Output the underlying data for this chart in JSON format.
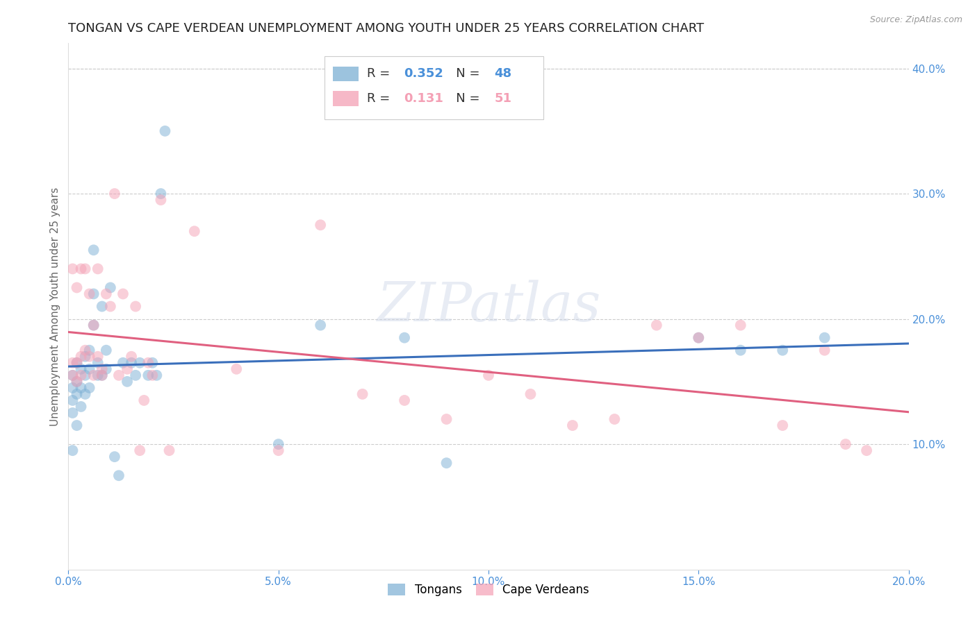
{
  "title": "TONGAN VS CAPE VERDEAN UNEMPLOYMENT AMONG YOUTH UNDER 25 YEARS CORRELATION CHART",
  "source": "Source: ZipAtlas.com",
  "ylabel": "Unemployment Among Youth under 25 years",
  "tongan_R": 0.352,
  "tongan_N": 48,
  "capeverdean_R": 0.131,
  "capeverdean_N": 51,
  "tongan_color": "#7bafd4",
  "capeverdean_color": "#f4a0b5",
  "trend_tongan_color": "#3a6fbb",
  "trend_capeverdean_color": "#e06080",
  "background_color": "#ffffff",
  "grid_color": "#cccccc",
  "axis_label_color": "#4a90d9",
  "xlim": [
    0.0,
    0.2
  ],
  "ylim": [
    0.0,
    0.42
  ],
  "xticks": [
    0.0,
    0.05,
    0.1,
    0.15,
    0.2
  ],
  "yticks_right": [
    0.1,
    0.2,
    0.3,
    0.4
  ],
  "tongan_x": [
    0.001,
    0.001,
    0.001,
    0.001,
    0.001,
    0.002,
    0.002,
    0.002,
    0.002,
    0.003,
    0.003,
    0.003,
    0.004,
    0.004,
    0.004,
    0.005,
    0.005,
    0.005,
    0.006,
    0.006,
    0.006,
    0.007,
    0.007,
    0.008,
    0.008,
    0.009,
    0.009,
    0.01,
    0.011,
    0.012,
    0.013,
    0.014,
    0.015,
    0.016,
    0.017,
    0.019,
    0.02,
    0.021,
    0.022,
    0.023,
    0.05,
    0.06,
    0.08,
    0.09,
    0.15,
    0.16,
    0.17,
    0.18
  ],
  "tongan_y": [
    0.155,
    0.145,
    0.135,
    0.125,
    0.095,
    0.165,
    0.15,
    0.14,
    0.115,
    0.16,
    0.145,
    0.13,
    0.17,
    0.155,
    0.14,
    0.175,
    0.16,
    0.145,
    0.255,
    0.22,
    0.195,
    0.165,
    0.155,
    0.21,
    0.155,
    0.175,
    0.16,
    0.225,
    0.09,
    0.075,
    0.165,
    0.15,
    0.165,
    0.155,
    0.165,
    0.155,
    0.165,
    0.155,
    0.3,
    0.35,
    0.1,
    0.195,
    0.185,
    0.085,
    0.185,
    0.175,
    0.175,
    0.185
  ],
  "capeverdean_x": [
    0.001,
    0.001,
    0.001,
    0.002,
    0.002,
    0.002,
    0.003,
    0.003,
    0.003,
    0.004,
    0.004,
    0.005,
    0.005,
    0.006,
    0.006,
    0.007,
    0.007,
    0.008,
    0.008,
    0.009,
    0.01,
    0.011,
    0.012,
    0.013,
    0.014,
    0.015,
    0.016,
    0.017,
    0.018,
    0.019,
    0.02,
    0.022,
    0.024,
    0.03,
    0.04,
    0.05,
    0.06,
    0.07,
    0.08,
    0.09,
    0.1,
    0.11,
    0.12,
    0.13,
    0.14,
    0.15,
    0.16,
    0.17,
    0.18,
    0.185,
    0.19
  ],
  "capeverdean_y": [
    0.155,
    0.24,
    0.165,
    0.15,
    0.225,
    0.165,
    0.24,
    0.155,
    0.17,
    0.175,
    0.24,
    0.22,
    0.17,
    0.155,
    0.195,
    0.17,
    0.24,
    0.16,
    0.155,
    0.22,
    0.21,
    0.3,
    0.155,
    0.22,
    0.16,
    0.17,
    0.21,
    0.095,
    0.135,
    0.165,
    0.155,
    0.295,
    0.095,
    0.27,
    0.16,
    0.095,
    0.275,
    0.14,
    0.135,
    0.12,
    0.155,
    0.14,
    0.115,
    0.12,
    0.195,
    0.185,
    0.195,
    0.115,
    0.175,
    0.1,
    0.095
  ],
  "watermark_text": "ZIPatlas",
  "title_fontsize": 13,
  "axis_fontsize": 11,
  "tick_fontsize": 11,
  "dot_size": 130,
  "dot_alpha": 0.5,
  "line_width": 2.2
}
